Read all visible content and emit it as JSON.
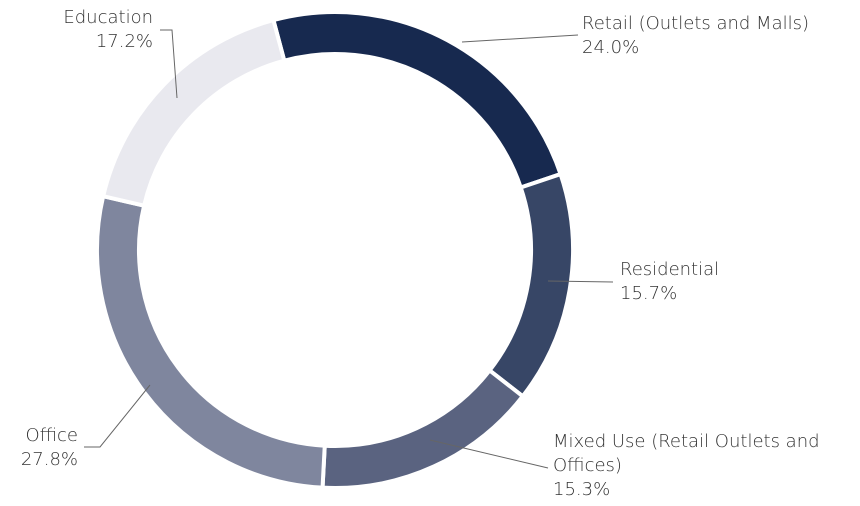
{
  "chart_data": {
    "type": "donut",
    "categories": [
      "Retail (Outlets and Malls)",
      "Residential",
      "Mixed Use (Retail Outlets and Offices)",
      "Office",
      "Education"
    ],
    "values": [
      24.0,
      15.7,
      15.3,
      27.8,
      17.2
    ],
    "value_labels": [
      "24.0%",
      "15.7%",
      "15.3%",
      "27.8%",
      "17.2%"
    ],
    "colors": [
      "#17294f",
      "#374666",
      "#5a6380",
      "#7f869e",
      "#e9e9ef"
    ]
  }
}
